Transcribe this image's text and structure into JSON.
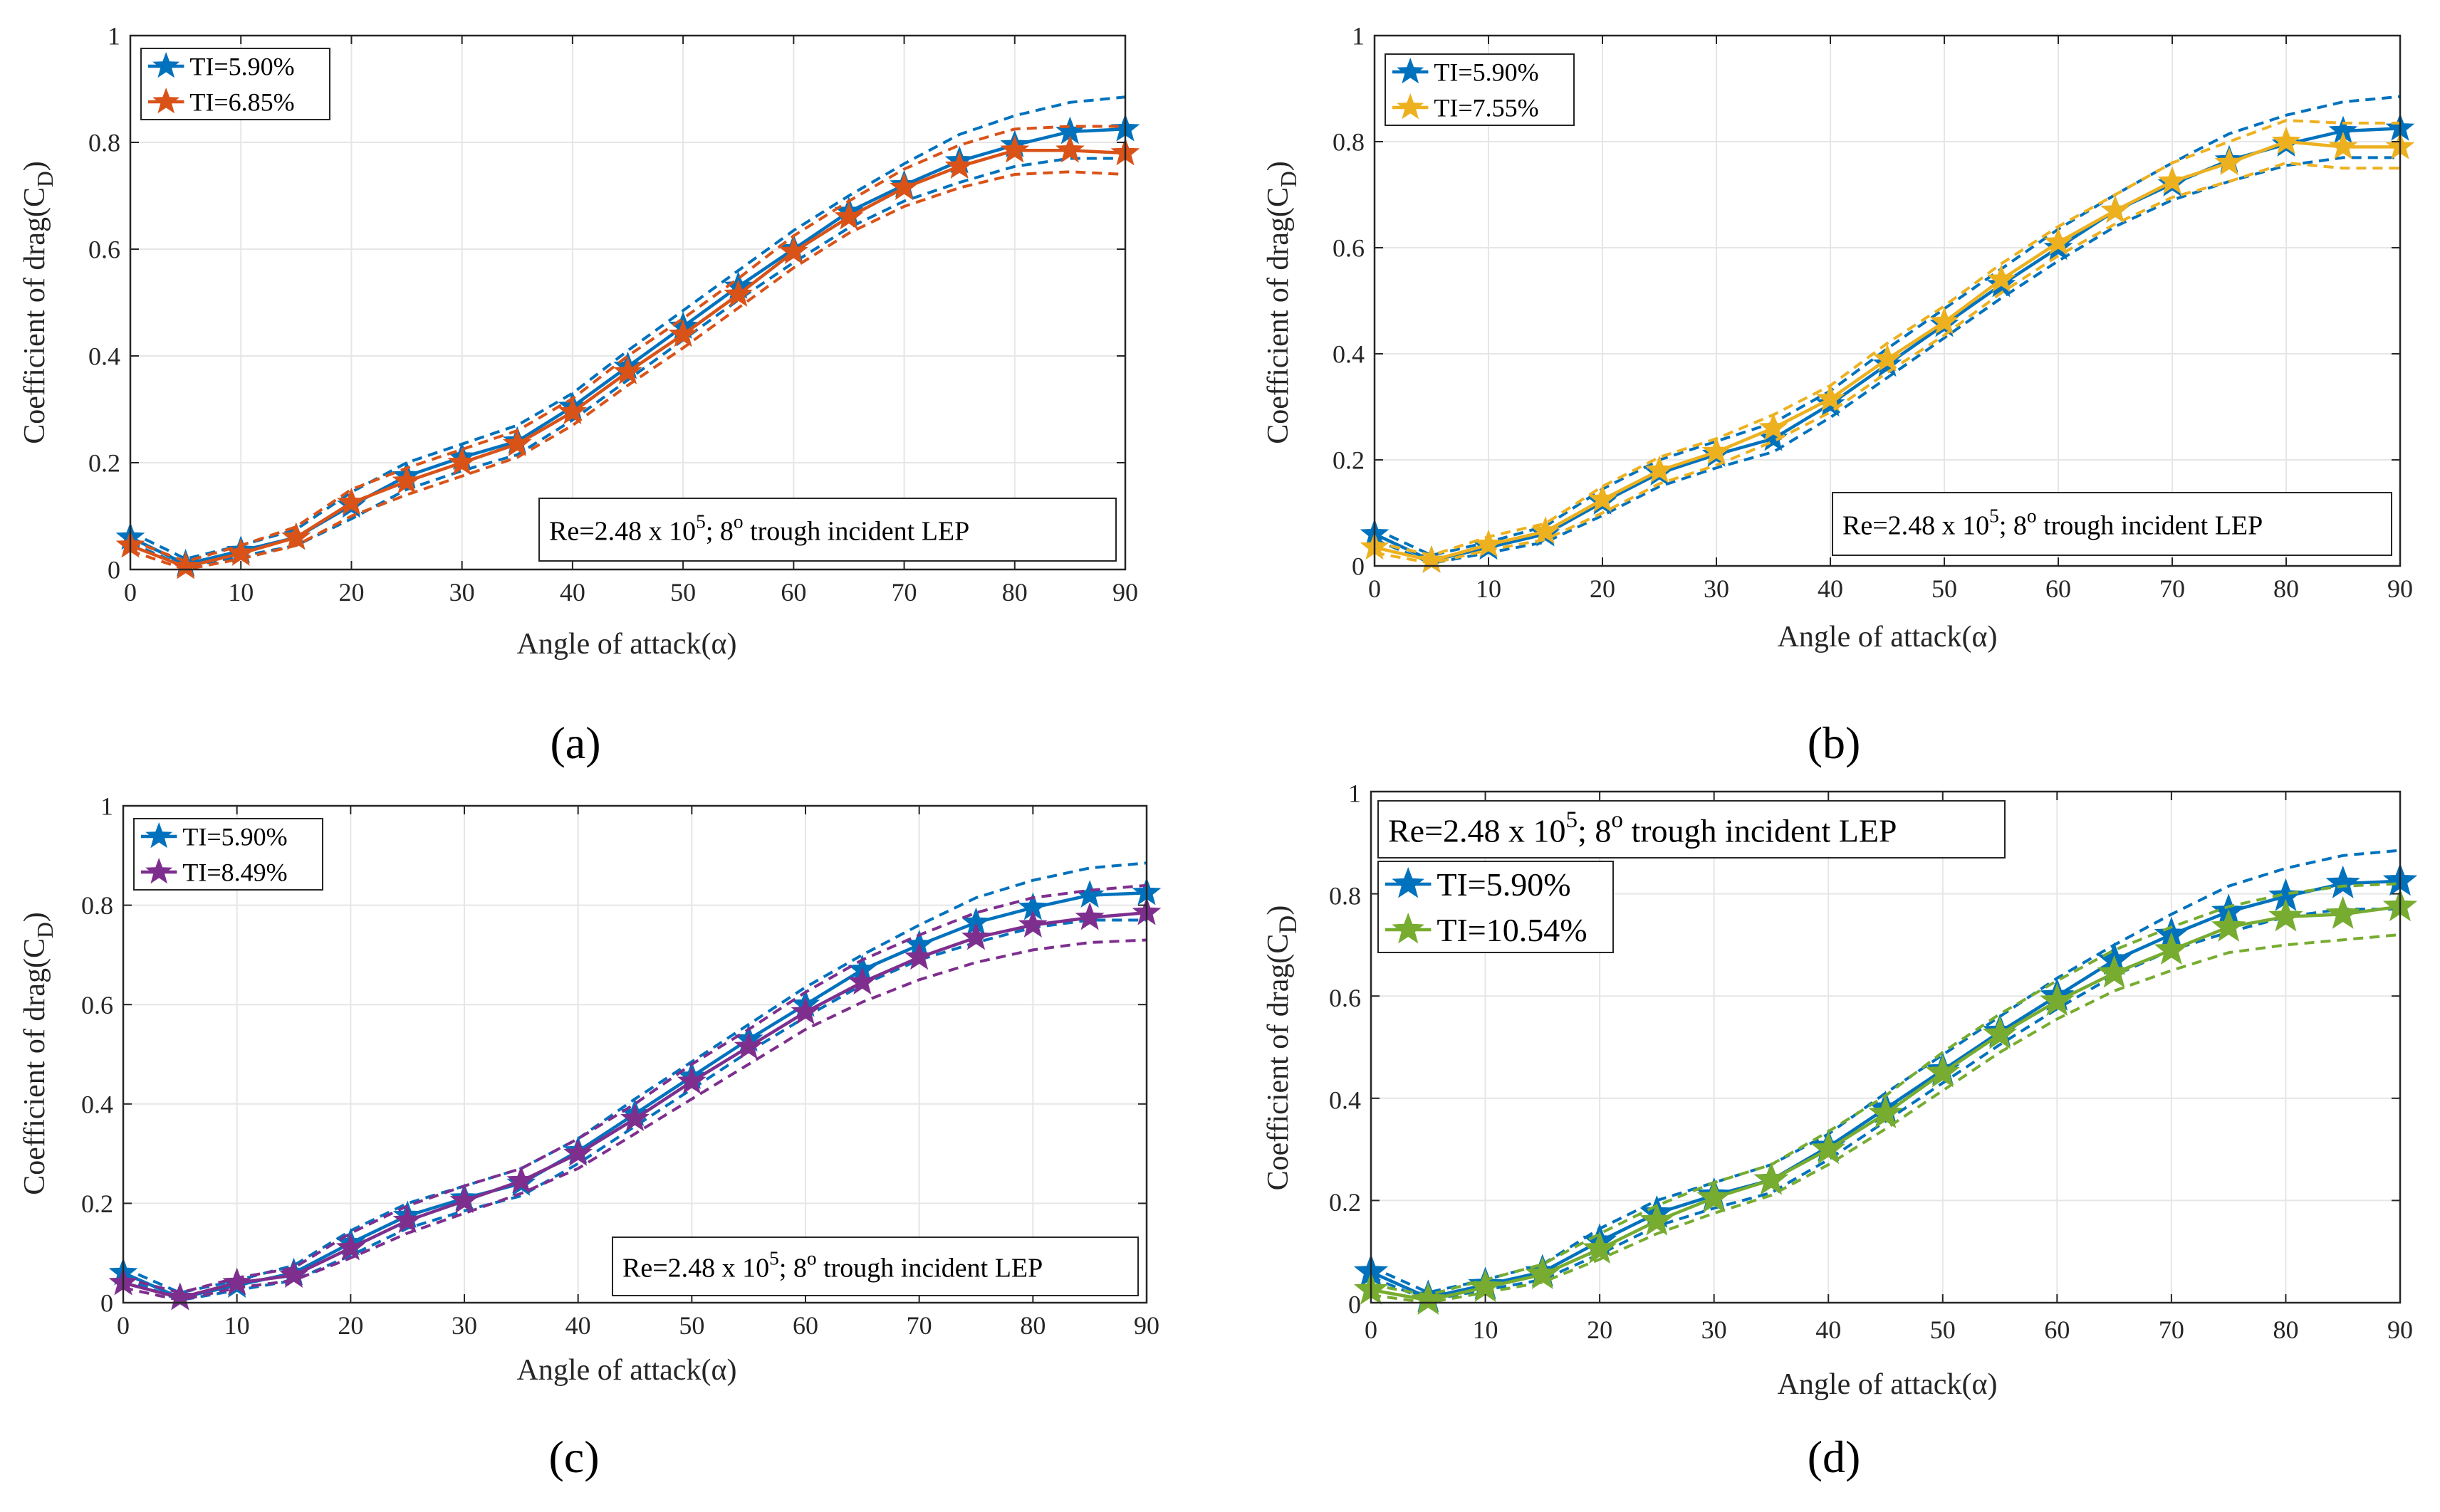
{
  "colors": {
    "base": "#0072BD",
    "orange": "#D95319",
    "yellow": "#EDB120",
    "purple": "#7E2F8E",
    "green": "#77AC30",
    "grid": "#e6e6e6",
    "axis": "#262626"
  },
  "chart_data": [
    {
      "type": "line",
      "panel_label": "(a)",
      "xlabel": "Angle of attack(α)",
      "ylabel": "Coefficient of drag(C",
      "ylabel_sub": "D",
      "ylabel_end": ")",
      "xlim": [
        0,
        90
      ],
      "ylim": [
        0,
        1
      ],
      "xticks": [
        0,
        10,
        20,
        30,
        40,
        50,
        60,
        70,
        80,
        90
      ],
      "yticks": [
        0,
        0.2,
        0.4,
        0.6,
        0.8,
        1
      ],
      "ytick_labels": [
        "0",
        "0.2",
        "0.4",
        "0.6",
        "0.8",
        "1"
      ],
      "grid": true,
      "legend_position": "top-left",
      "annotation_position": "bottom-right",
      "annotation": {
        "pre": "Re=2.48 x 10",
        "sup1": "5",
        "mid": "; 8",
        "sup2": "o",
        "post": " trough incident LEP"
      },
      "x": [
        0,
        5,
        10,
        15,
        20,
        25,
        30,
        35,
        40,
        45,
        50,
        55,
        60,
        65,
        70,
        75,
        80,
        85,
        90
      ],
      "series": [
        {
          "name": "TI=5.90%",
          "color": "#0072BD",
          "values": [
            0.06,
            0.01,
            0.035,
            0.06,
            0.12,
            0.175,
            0.21,
            0.24,
            0.305,
            0.38,
            0.455,
            0.53,
            0.6,
            0.67,
            0.72,
            0.765,
            0.795,
            0.82,
            0.825
          ],
          "band_upper": [
            0.07,
            0.02,
            0.045,
            0.075,
            0.145,
            0.2,
            0.235,
            0.27,
            0.33,
            0.41,
            0.485,
            0.56,
            0.635,
            0.7,
            0.76,
            0.815,
            0.85,
            0.875,
            0.885
          ],
          "band_lower": [
            0.05,
            0.005,
            0.025,
            0.045,
            0.095,
            0.15,
            0.185,
            0.215,
            0.28,
            0.355,
            0.43,
            0.505,
            0.575,
            0.64,
            0.69,
            0.725,
            0.755,
            0.77,
            0.77
          ]
        },
        {
          "name": "TI=6.85%",
          "color": "#D95319",
          "values": [
            0.045,
            0.005,
            0.03,
            0.06,
            0.125,
            0.165,
            0.2,
            0.235,
            0.295,
            0.37,
            0.44,
            0.515,
            0.595,
            0.66,
            0.715,
            0.755,
            0.785,
            0.785,
            0.78
          ],
          "band_upper": [
            0.055,
            0.015,
            0.045,
            0.08,
            0.15,
            0.19,
            0.225,
            0.26,
            0.32,
            0.4,
            0.47,
            0.545,
            0.625,
            0.69,
            0.75,
            0.795,
            0.825,
            0.83,
            0.83
          ],
          "band_lower": [
            0.035,
            0.0,
            0.02,
            0.045,
            0.1,
            0.14,
            0.175,
            0.21,
            0.27,
            0.345,
            0.415,
            0.49,
            0.565,
            0.63,
            0.68,
            0.715,
            0.74,
            0.745,
            0.74
          ]
        }
      ]
    },
    {
      "type": "line",
      "panel_label": "(b)",
      "xlabel": "Angle of attack(α)",
      "ylabel": "Coefficient of drag(C",
      "ylabel_sub": "D",
      "ylabel_end": ")",
      "xlim": [
        0,
        90
      ],
      "ylim": [
        0,
        1
      ],
      "xticks": [
        0,
        10,
        20,
        30,
        40,
        50,
        60,
        70,
        80,
        90
      ],
      "yticks": [
        0,
        0.2,
        0.4,
        0.6,
        0.8,
        1
      ],
      "ytick_labels": [
        "0",
        "0.2",
        "0.4",
        "0.6",
        "0.8",
        "1"
      ],
      "grid": true,
      "legend_position": "top-left",
      "annotation_position": "bottom-right",
      "annotation": {
        "pre": "Re=2.48 x 10",
        "sup1": "5",
        "mid": "; 8",
        "sup2": "o",
        "post": " trough incident LEP"
      },
      "x": [
        0,
        5,
        10,
        15,
        20,
        25,
        30,
        35,
        40,
        45,
        50,
        55,
        60,
        65,
        70,
        75,
        80,
        85,
        90
      ],
      "series": [
        {
          "name": "TI=5.90%",
          "color": "#0072BD",
          "values": [
            0.06,
            0.01,
            0.035,
            0.06,
            0.12,
            0.175,
            0.21,
            0.24,
            0.305,
            0.38,
            0.455,
            0.53,
            0.6,
            0.67,
            0.72,
            0.765,
            0.795,
            0.82,
            0.825
          ],
          "band_upper": [
            0.07,
            0.02,
            0.045,
            0.075,
            0.145,
            0.2,
            0.235,
            0.27,
            0.33,
            0.41,
            0.485,
            0.56,
            0.635,
            0.7,
            0.76,
            0.815,
            0.85,
            0.875,
            0.885
          ],
          "band_lower": [
            0.05,
            0.005,
            0.025,
            0.045,
            0.095,
            0.15,
            0.185,
            0.215,
            0.28,
            0.355,
            0.43,
            0.505,
            0.575,
            0.64,
            0.69,
            0.725,
            0.755,
            0.77,
            0.77
          ]
        },
        {
          "name": "TI=7.55%",
          "color": "#EDB120",
          "values": [
            0.035,
            0.01,
            0.04,
            0.065,
            0.125,
            0.18,
            0.215,
            0.26,
            0.315,
            0.39,
            0.46,
            0.54,
            0.61,
            0.67,
            0.725,
            0.76,
            0.8,
            0.79,
            0.79
          ],
          "band_upper": [
            0.045,
            0.02,
            0.055,
            0.08,
            0.15,
            0.205,
            0.24,
            0.285,
            0.34,
            0.42,
            0.49,
            0.57,
            0.64,
            0.7,
            0.76,
            0.8,
            0.84,
            0.835,
            0.835
          ],
          "band_lower": [
            0.025,
            0.005,
            0.03,
            0.05,
            0.1,
            0.155,
            0.19,
            0.235,
            0.29,
            0.365,
            0.435,
            0.515,
            0.585,
            0.645,
            0.695,
            0.725,
            0.76,
            0.75,
            0.75
          ]
        }
      ]
    },
    {
      "type": "line",
      "panel_label": "(c)",
      "xlabel": "Angle of attack(α)",
      "ylabel": "Coefficient of drag(C",
      "ylabel_sub": "D",
      "ylabel_end": ")",
      "xlim": [
        0,
        90
      ],
      "ylim": [
        0,
        1
      ],
      "xticks": [
        0,
        10,
        20,
        30,
        40,
        50,
        60,
        70,
        80,
        90
      ],
      "yticks": [
        0,
        0.2,
        0.4,
        0.6,
        0.8,
        1
      ],
      "ytick_labels": [
        "0",
        "0.2",
        "0.4",
        "0.6",
        "0.8",
        "1"
      ],
      "grid": true,
      "legend_position": "top-left",
      "annotation_position": "bottom-right",
      "annotation": {
        "pre": "Re=2.48 x 10",
        "sup1": "5",
        "mid": "; 8",
        "sup2": "o",
        "post": " trough incident LEP"
      },
      "x": [
        0,
        5,
        10,
        15,
        20,
        25,
        30,
        35,
        40,
        45,
        50,
        55,
        60,
        65,
        70,
        75,
        80,
        85,
        90
      ],
      "series": [
        {
          "name": "TI=5.90%",
          "color": "#0072BD",
          "values": [
            0.06,
            0.01,
            0.035,
            0.06,
            0.12,
            0.175,
            0.21,
            0.24,
            0.305,
            0.38,
            0.455,
            0.53,
            0.6,
            0.67,
            0.72,
            0.765,
            0.795,
            0.82,
            0.825
          ],
          "band_upper": [
            0.07,
            0.02,
            0.045,
            0.075,
            0.145,
            0.2,
            0.235,
            0.27,
            0.33,
            0.41,
            0.485,
            0.56,
            0.635,
            0.7,
            0.76,
            0.815,
            0.85,
            0.875,
            0.885
          ],
          "band_lower": [
            0.05,
            0.005,
            0.025,
            0.045,
            0.095,
            0.15,
            0.185,
            0.215,
            0.28,
            0.355,
            0.43,
            0.505,
            0.575,
            0.64,
            0.69,
            0.725,
            0.755,
            0.77,
            0.77
          ]
        },
        {
          "name": "TI=8.49%",
          "color": "#7E2F8E",
          "values": [
            0.04,
            0.01,
            0.04,
            0.055,
            0.11,
            0.165,
            0.205,
            0.245,
            0.3,
            0.37,
            0.445,
            0.515,
            0.585,
            0.645,
            0.695,
            0.735,
            0.76,
            0.775,
            0.785
          ],
          "band_upper": [
            0.05,
            0.02,
            0.05,
            0.07,
            0.14,
            0.195,
            0.235,
            0.27,
            0.33,
            0.4,
            0.48,
            0.55,
            0.625,
            0.69,
            0.74,
            0.785,
            0.815,
            0.83,
            0.84
          ],
          "band_lower": [
            0.03,
            0.005,
            0.03,
            0.045,
            0.09,
            0.14,
            0.18,
            0.22,
            0.27,
            0.34,
            0.41,
            0.48,
            0.55,
            0.605,
            0.65,
            0.685,
            0.71,
            0.725,
            0.73
          ]
        }
      ]
    },
    {
      "type": "line",
      "panel_label": "(d)",
      "xlabel": "Angle of attack(α)",
      "ylabel": "Coefficient of drag(C",
      "ylabel_sub": "D",
      "ylabel_end": ")",
      "xlim": [
        0,
        90
      ],
      "ylim": [
        0,
        1
      ],
      "xticks": [
        0,
        10,
        20,
        30,
        40,
        50,
        60,
        70,
        80,
        90
      ],
      "yticks": [
        0,
        0.2,
        0.4,
        0.6,
        0.8,
        1
      ],
      "ytick_labels": [
        "0",
        "0.2",
        "0.4",
        "0.6",
        "0.8",
        "1"
      ],
      "grid": true,
      "legend_position": "top-left",
      "annotation_position": "top-left",
      "annotation": {
        "pre": "Re=2.48 x 10",
        "sup1": "5",
        "mid": "; 8",
        "sup2": "o",
        "post": " trough incident LEP"
      },
      "x": [
        0,
        5,
        10,
        15,
        20,
        25,
        30,
        35,
        40,
        45,
        50,
        55,
        60,
        65,
        70,
        75,
        80,
        85,
        90
      ],
      "series": [
        {
          "name": "TI=5.90%",
          "color": "#0072BD",
          "values": [
            0.06,
            0.01,
            0.035,
            0.06,
            0.12,
            0.175,
            0.21,
            0.24,
            0.305,
            0.38,
            0.455,
            0.53,
            0.6,
            0.67,
            0.72,
            0.765,
            0.795,
            0.82,
            0.825
          ],
          "band_upper": [
            0.07,
            0.02,
            0.045,
            0.075,
            0.145,
            0.2,
            0.235,
            0.27,
            0.33,
            0.41,
            0.485,
            0.56,
            0.635,
            0.7,
            0.76,
            0.815,
            0.85,
            0.875,
            0.885
          ],
          "band_lower": [
            0.05,
            0.005,
            0.025,
            0.045,
            0.095,
            0.15,
            0.185,
            0.215,
            0.28,
            0.355,
            0.43,
            0.505,
            0.575,
            0.64,
            0.69,
            0.725,
            0.755,
            0.77,
            0.77
          ]
        },
        {
          "name": "TI=10.54%",
          "color": "#77AC30",
          "values": [
            0.025,
            0.005,
            0.03,
            0.055,
            0.105,
            0.16,
            0.205,
            0.24,
            0.3,
            0.37,
            0.45,
            0.525,
            0.59,
            0.645,
            0.69,
            0.735,
            0.755,
            0.76,
            0.775
          ],
          "band_upper": [
            0.035,
            0.015,
            0.045,
            0.075,
            0.135,
            0.19,
            0.235,
            0.27,
            0.335,
            0.405,
            0.49,
            0.565,
            0.63,
            0.69,
            0.735,
            0.775,
            0.8,
            0.815,
            0.82
          ],
          "band_lower": [
            0.015,
            0.0,
            0.02,
            0.04,
            0.085,
            0.135,
            0.175,
            0.21,
            0.27,
            0.34,
            0.415,
            0.49,
            0.555,
            0.61,
            0.65,
            0.685,
            0.7,
            0.71,
            0.72
          ]
        }
      ]
    }
  ]
}
